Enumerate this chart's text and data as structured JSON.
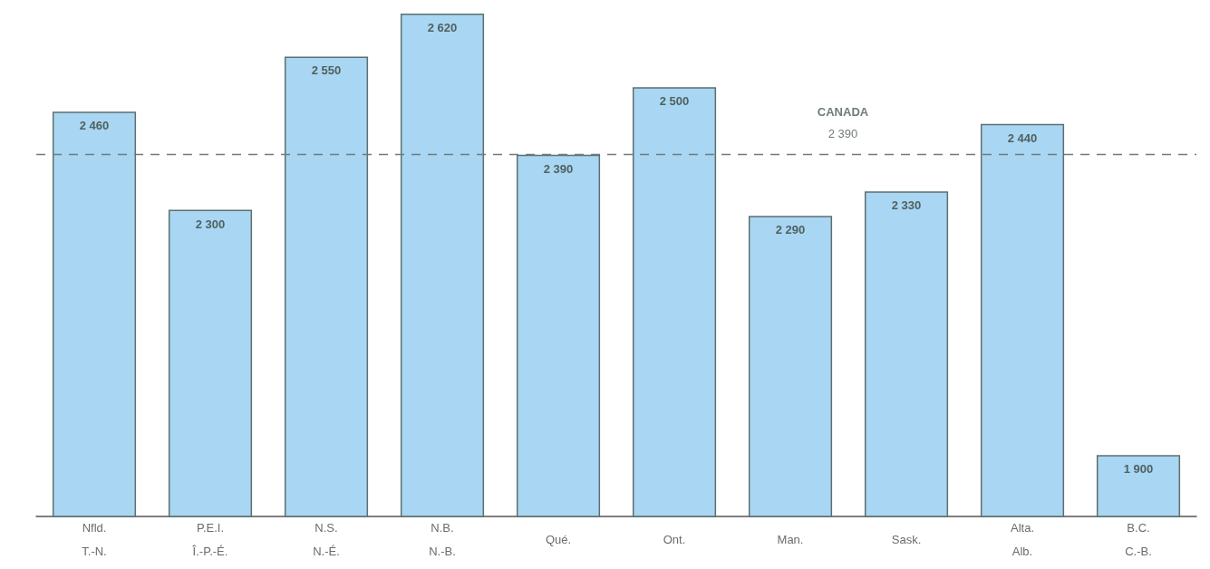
{
  "chart_data": {
    "type": "bar",
    "categories": [
      "Nfld.\nT.-N.",
      "P.E.I.\nÎ.-P.-É.",
      "N.S.\nN.-É.",
      "N.B.\nN.-B.",
      "Qué.",
      "Ont.",
      "Man.",
      "Sask.",
      "Alta.\nAlb.",
      "B.C.\nC.-B."
    ],
    "values": [
      2460,
      2300,
      2550,
      2620,
      2390,
      2500,
      2290,
      2330,
      2440,
      1900
    ],
    "value_labels": [
      "2 460",
      "2 300",
      "2 550",
      "2 620",
      "2 390",
      "2 500",
      "2 290",
      "2 330",
      "2 440",
      "1 900"
    ],
    "color": "#a9d6f2",
    "ylim": [
      1800,
      2620
    ],
    "tick_labels": "x",
    "ref_lines": [
      {
        "axis": "y",
        "value": 2390,
        "label": "CANADA\n2 390",
        "color": "#707b7b",
        "line_style": "dashed"
      }
    ]
  }
}
